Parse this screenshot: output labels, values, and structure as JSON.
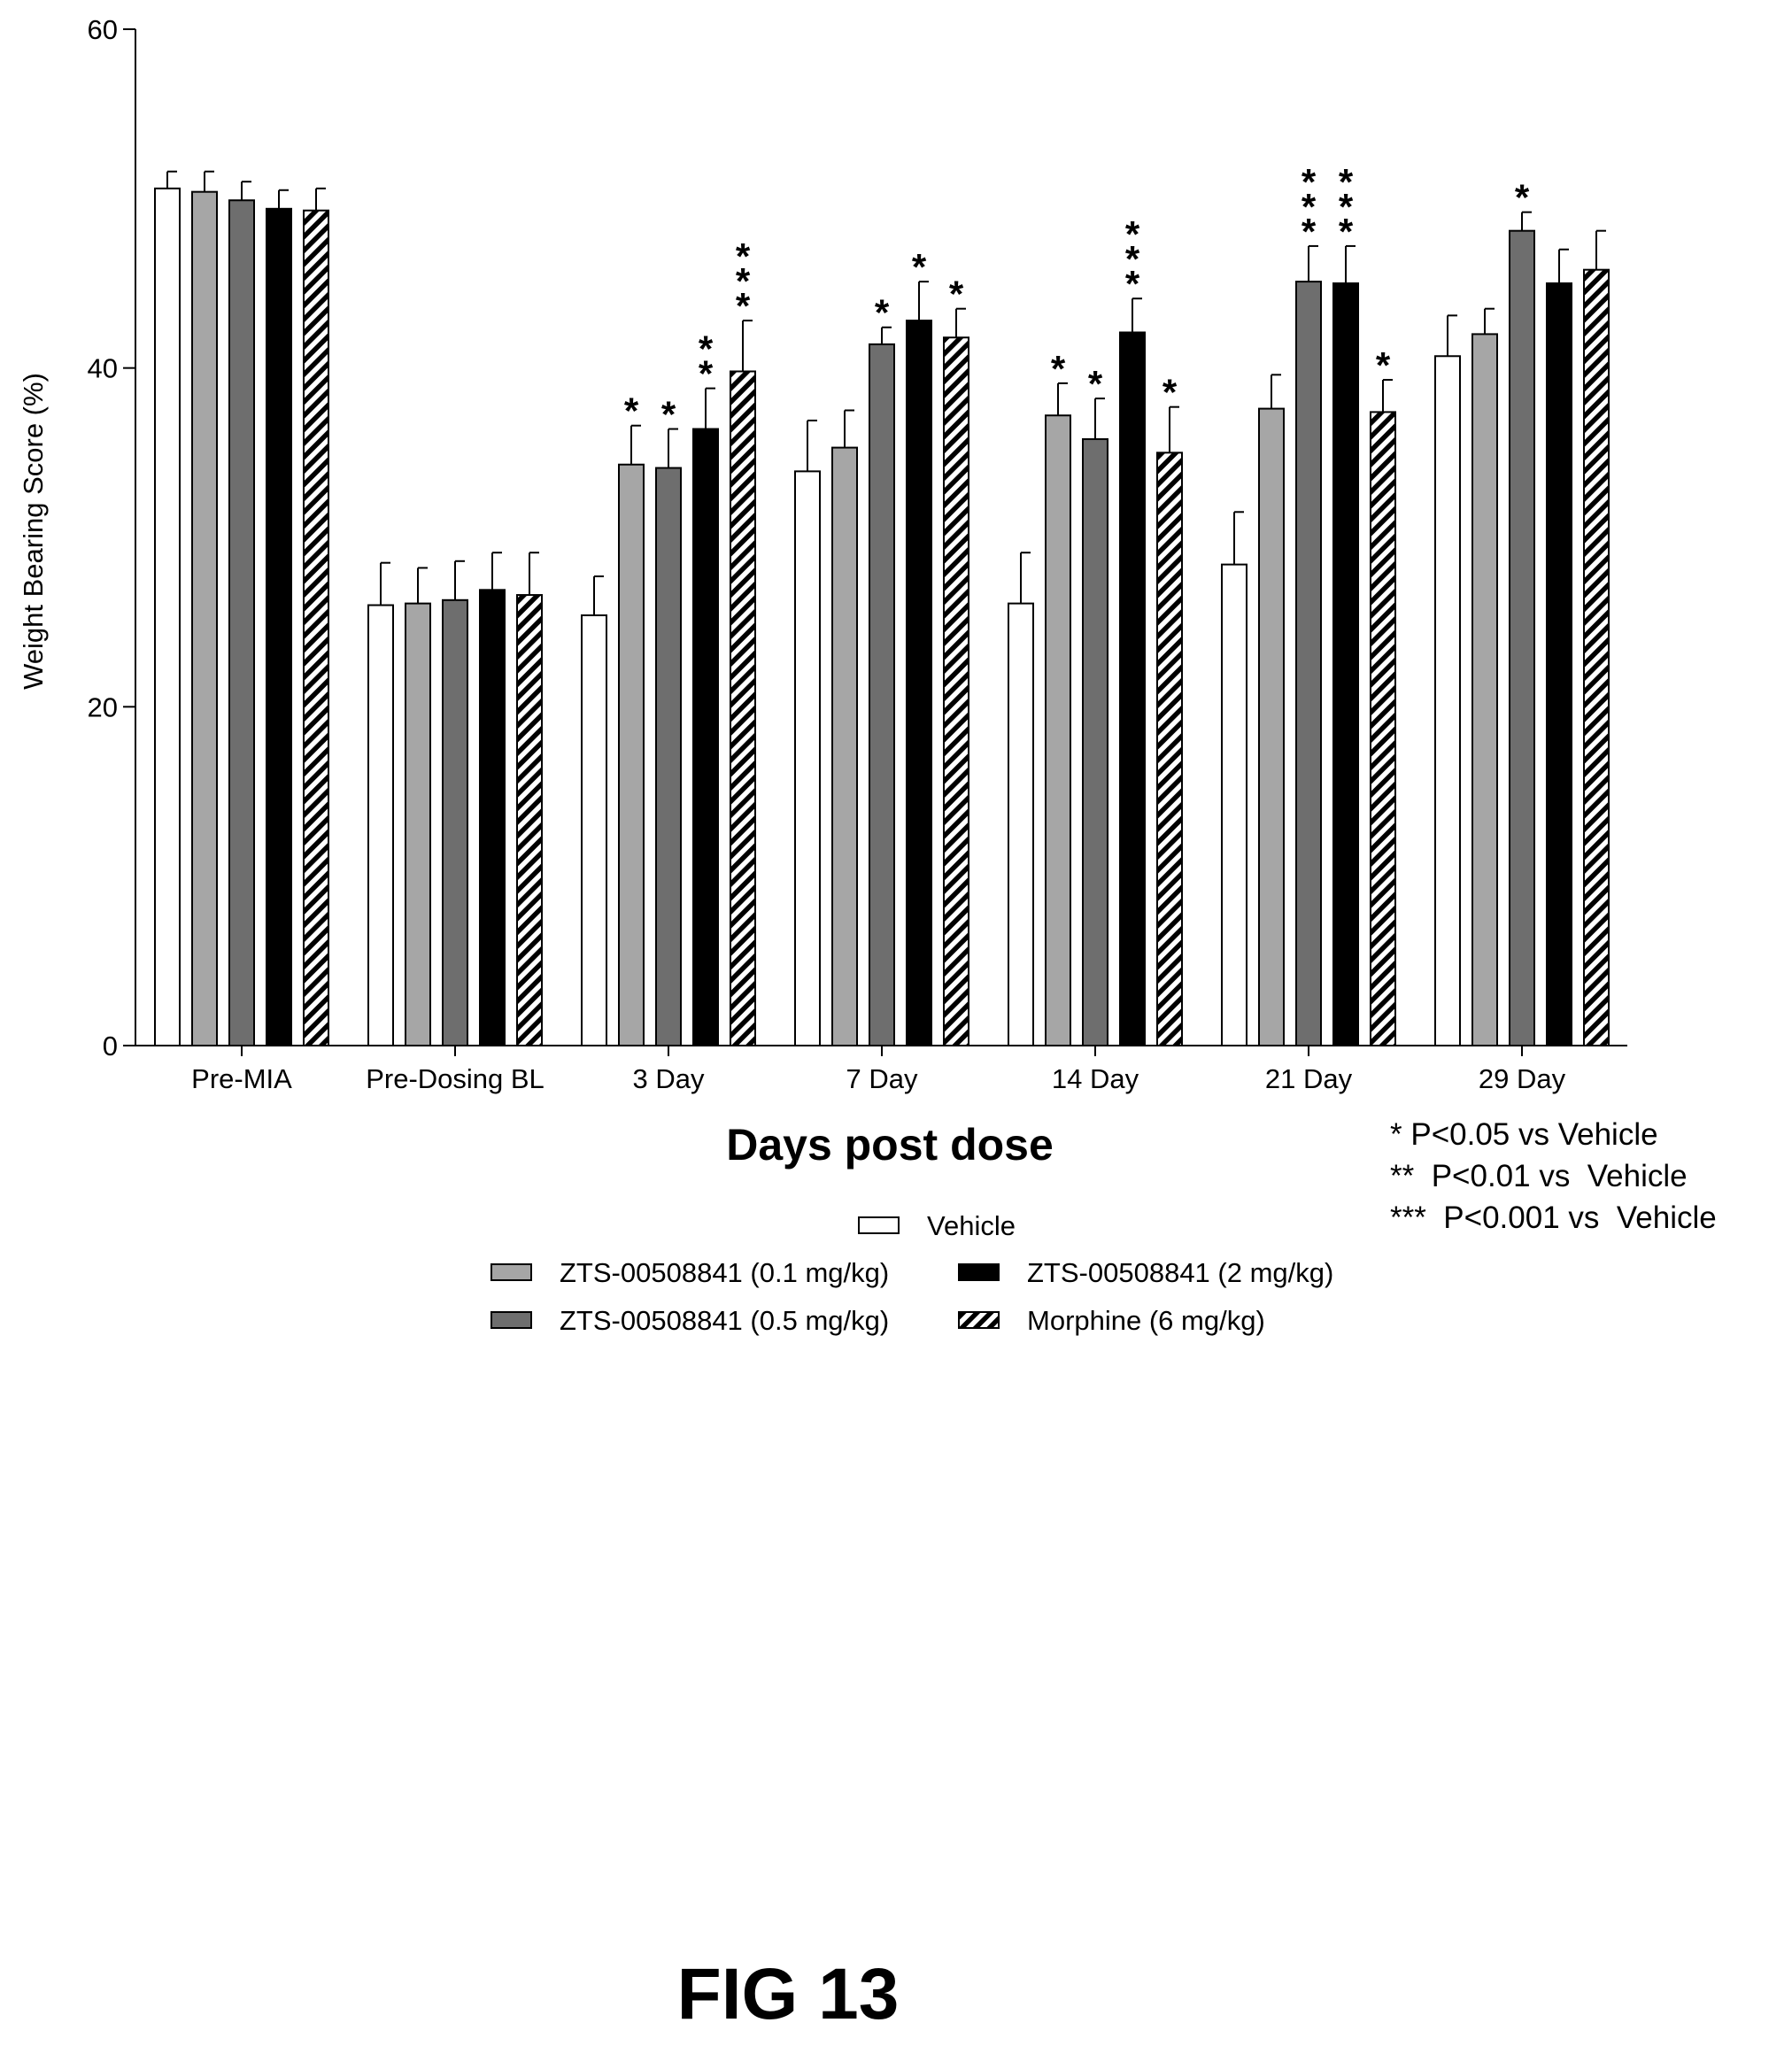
{
  "chart_data": {
    "type": "bar",
    "title": "",
    "ylabel": "Weight Bearing Score (%)",
    "xlabel": "Days post dose",
    "ylim": [
      0,
      60
    ],
    "yticks": [
      "0",
      "20",
      "40",
      "60"
    ],
    "categories": [
      "Pre-MIA",
      "Pre-Dosing BL",
      "3 Day",
      "7 Day",
      "14 Day",
      "21 Day",
      "29 Day"
    ],
    "series": [
      {
        "name": "Vehicle",
        "style": "white",
        "values": [
          50.6,
          26.0,
          25.4,
          33.9,
          26.1,
          28.4,
          40.7
        ],
        "errors": [
          1.0,
          2.5,
          2.3,
          3.0,
          3.0,
          3.1,
          2.4
        ],
        "sig": [
          "",
          "",
          "",
          "",
          "",
          "",
          ""
        ]
      },
      {
        "name": "ZTS-00508841 (0.1 mg/kg)",
        "style": "lightgray",
        "values": [
          50.4,
          26.1,
          34.3,
          35.3,
          37.2,
          37.6,
          42.0
        ],
        "errors": [
          1.2,
          2.1,
          2.3,
          2.2,
          1.9,
          2.0,
          1.5
        ],
        "sig": [
          "",
          "",
          "*",
          "",
          "*",
          "",
          ""
        ]
      },
      {
        "name": "ZTS-00508841 (0.5 mg/kg)",
        "style": "darkgray",
        "values": [
          49.9,
          26.3,
          34.1,
          41.4,
          35.8,
          45.1,
          48.1
        ],
        "errors": [
          1.1,
          2.3,
          2.3,
          1.0,
          2.4,
          2.1,
          1.1
        ],
        "sig": [
          "",
          "",
          "*",
          "*",
          "*",
          "***",
          "*"
        ]
      },
      {
        "name": "ZTS-00508841 (2 mg/kg)",
        "style": "black",
        "values": [
          49.4,
          26.9,
          36.4,
          42.8,
          42.1,
          45.0,
          45.0
        ],
        "errors": [
          1.1,
          2.2,
          2.4,
          2.3,
          2.0,
          2.2,
          2.0
        ],
        "sig": [
          "",
          "",
          "**",
          "*",
          "***",
          "***",
          ""
        ]
      },
      {
        "name": "Morphine (6 mg/kg)",
        "style": "hatch",
        "values": [
          49.3,
          26.6,
          39.8,
          41.8,
          35.0,
          37.4,
          45.8
        ],
        "errors": [
          1.3,
          2.5,
          3.0,
          1.7,
          2.7,
          1.9,
          2.3
        ],
        "sig": [
          "",
          "",
          "***",
          "*",
          "*",
          "*",
          ""
        ]
      }
    ],
    "legend_position": "bottom-center",
    "grid": false
  },
  "significance_notes": [
    "* P<0.05 vs Vehicle",
    "**  P<0.01 vs  Vehicle",
    "***  P<0.001 vs  Vehicle"
  ],
  "figure_label": "FIG 13",
  "colors": {
    "white": "#ffffff",
    "lightgray": "#a6a6a6",
    "darkgray": "#6e6e6e",
    "black": "#000000",
    "axis": "#000000"
  }
}
